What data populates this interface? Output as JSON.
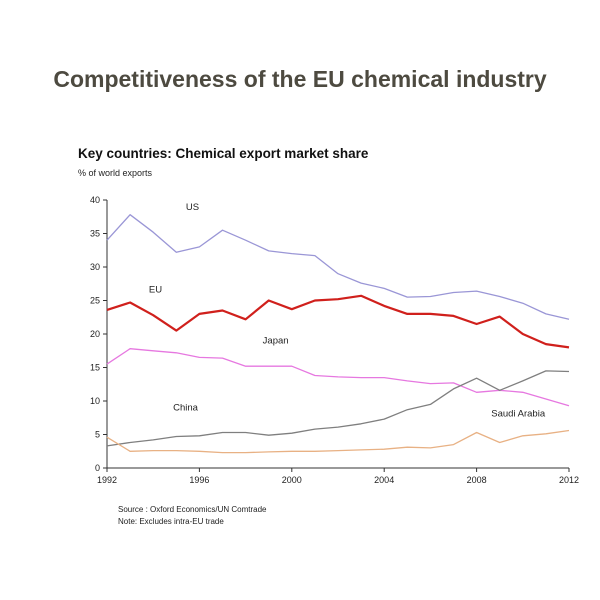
{
  "page": {
    "title": "Competitiveness of the EU chemical industry"
  },
  "chart_data": {
    "type": "line",
    "title": "Key countries: Chemical export market share",
    "ylabel": "% of world exports",
    "xlabel": "",
    "xlim": [
      1992,
      2012
    ],
    "ylim": [
      0,
      40
    ],
    "xticks": [
      1992,
      1996,
      2000,
      2004,
      2008,
      2012
    ],
    "yticks": [
      0,
      5,
      10,
      15,
      20,
      25,
      30,
      35,
      40
    ],
    "grid": false,
    "legend": "inline labels",
    "x": [
      1992,
      1993,
      1994,
      1995,
      1996,
      1997,
      1998,
      1999,
      2000,
      2001,
      2002,
      2003,
      2004,
      2005,
      2006,
      2007,
      2008,
      2009,
      2010,
      2011,
      2012
    ],
    "series": [
      {
        "name": "US",
        "color": "#9a96d6",
        "width": 1.3,
        "values": [
          34,
          37.8,
          35.2,
          32.2,
          33.0,
          35.5,
          34.0,
          32.4,
          32.0,
          31.7,
          29.0,
          27.6,
          26.8,
          25.5,
          25.6,
          26.2,
          26.4,
          25.6,
          24.6,
          23.0,
          22.2
        ]
      },
      {
        "name": "EU",
        "color": "#d0201c",
        "width": 2.2,
        "values": [
          23.6,
          24.7,
          22.8,
          20.5,
          23.0,
          23.5,
          22.2,
          25.0,
          23.7,
          25.0,
          25.2,
          25.7,
          24.2,
          23.0,
          23.0,
          22.7,
          21.5,
          22.6,
          20.0,
          18.5,
          18.0
        ]
      },
      {
        "name": "Japan",
        "color": "#e678e0",
        "width": 1.3,
        "values": [
          15.5,
          17.8,
          17.5,
          17.2,
          16.5,
          16.4,
          15.2,
          15.2,
          15.2,
          13.8,
          13.6,
          13.5,
          13.5,
          13.0,
          12.6,
          12.7,
          11.3,
          11.6,
          11.3,
          10.3,
          9.3
        ]
      },
      {
        "name": "China",
        "color": "#7f7f7f",
        "width": 1.3,
        "values": [
          3.3,
          3.8,
          4.2,
          4.7,
          4.8,
          5.3,
          5.3,
          4.9,
          5.2,
          5.8,
          6.1,
          6.6,
          7.3,
          8.7,
          9.5,
          11.8,
          13.4,
          11.6,
          13.0,
          14.5,
          14.4
        ]
      },
      {
        "name": "Saudi Arabia",
        "color": "#e8b184",
        "width": 1.3,
        "values": [
          4.6,
          2.5,
          2.6,
          2.6,
          2.5,
          2.3,
          2.3,
          2.4,
          2.5,
          2.5,
          2.6,
          2.7,
          2.8,
          3.1,
          3.0,
          3.5,
          5.3,
          3.8,
          4.8,
          5.1,
          5.6
        ]
      }
    ],
    "series_labels": [
      {
        "text": "US",
        "x": 1995.7,
        "y": 38.5
      },
      {
        "text": "EU",
        "x": 1994.1,
        "y": 26.2
      },
      {
        "text": "Japan",
        "x": 1999.3,
        "y": 18.6
      },
      {
        "text": "China",
        "x": 1995.4,
        "y": 8.6
      },
      {
        "text": "Saudi Arabia",
        "x": 2009.8,
        "y": 7.7
      }
    ],
    "notes": [
      "Source : Oxford Economics/UN Comtrade",
      "Note: Excludes intra-EU trade"
    ]
  }
}
